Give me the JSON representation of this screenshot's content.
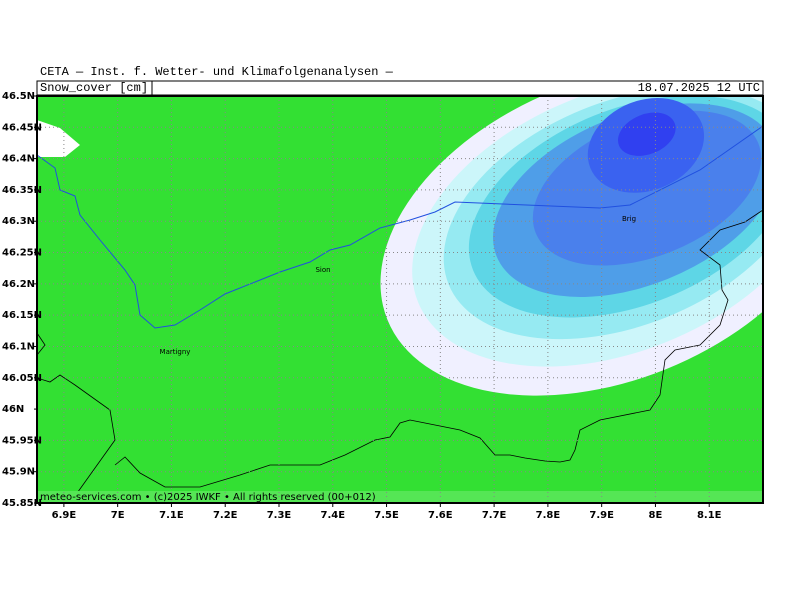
{
  "header": {
    "title": "CETA — Inst. f. Wetter- und Klimafolgenanalysen —",
    "field": "Snow_cover [cm]",
    "date": "18.07.2025 12 UTC"
  },
  "map": {
    "xlim": [
      6.85,
      8.2
    ],
    "ylim": [
      45.85,
      46.5
    ],
    "xticks": [
      {
        "value": 6.9,
        "label": "6.9E"
      },
      {
        "value": 7,
        "label": "7E"
      },
      {
        "value": 7.1,
        "label": "7.1E"
      },
      {
        "value": 7.2,
        "label": "7.2E"
      },
      {
        "value": 7.3,
        "label": "7.3E"
      },
      {
        "value": 7.4,
        "label": "7.4E"
      },
      {
        "value": 7.5,
        "label": "7.5E"
      },
      {
        "value": 7.6,
        "label": "7.6E"
      },
      {
        "value": 7.7,
        "label": "7.7E"
      },
      {
        "value": 7.8,
        "label": "7.8E"
      },
      {
        "value": 7.9,
        "label": "7.9E"
      },
      {
        "value": 8,
        "label": "8E"
      },
      {
        "value": 8.1,
        "label": "8.1E"
      }
    ],
    "yticks": [
      {
        "value": 46.5,
        "label": "46.5N"
      },
      {
        "value": 46.45,
        "label": "46.45N"
      },
      {
        "value": 46.4,
        "label": "46.4N"
      },
      {
        "value": 46.35,
        "label": "46.35N"
      },
      {
        "value": 46.3,
        "label": "46.3N"
      },
      {
        "value": 46.25,
        "label": "46.25N"
      },
      {
        "value": 46.2,
        "label": "46.2N"
      },
      {
        "value": 46.15,
        "label": "46.15N"
      },
      {
        "value": 46.1,
        "label": "46.1N"
      },
      {
        "value": 46.05,
        "label": "46.05N"
      },
      {
        "value": 46,
        "label": "46N"
      },
      {
        "value": 45.95,
        "label": "45.95N"
      },
      {
        "value": 45.9,
        "label": "45.9N"
      },
      {
        "value": 45.85,
        "label": "45.85N"
      }
    ],
    "cities": [
      "Sion",
      "Martigny",
      "Brig"
    ]
  },
  "footer": "meteo-services.com • (c)2025 IWKF • All rights reserved (00+012)"
}
